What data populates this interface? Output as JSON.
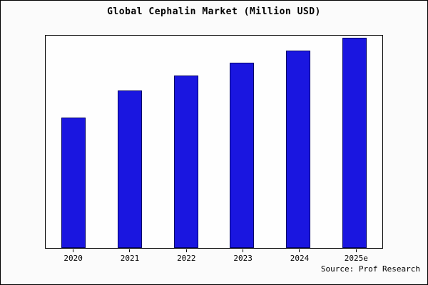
{
  "chart": {
    "title": "Global Cephalin Market (Million USD)",
    "source": "Source: Prof Research"
  },
  "chart_data": {
    "type": "bar",
    "title": "Global Cephalin Market (Million USD)",
    "categories": [
      "2020",
      "2021",
      "2022",
      "2023",
      "2024",
      "2025e"
    ],
    "values": [
      62,
      75,
      82,
      88,
      94,
      100
    ],
    "xlabel": "",
    "ylabel": "",
    "ylim": [
      0,
      101
    ],
    "grid": false,
    "legend": false,
    "bar_color": "#1a16e0",
    "bar_edge_color": "#000066",
    "source_note": "Source: Prof Research"
  }
}
